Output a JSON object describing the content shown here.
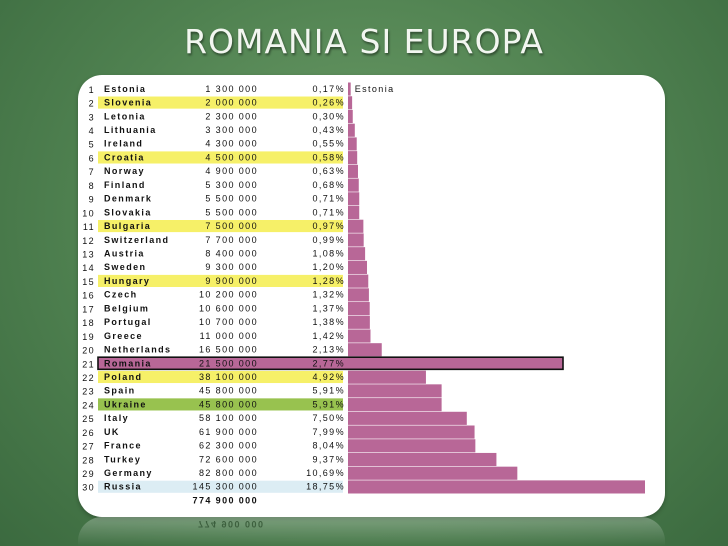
{
  "title": "ROMANIA SI EUROPA",
  "colors": {
    "bar": "#b86797",
    "highlight_yellow": "#f6f068",
    "highlight_green": "#98c24f",
    "highlight_blue": "#dcedf4",
    "highlight_romania": "#b86797"
  },
  "chart_data": {
    "type": "bar",
    "orientation": "horizontal",
    "bar_label": "Estonia",
    "total": "774 900 000",
    "rows": [
      {
        "rank": "1",
        "country": "Estonia",
        "population": "1 300 000",
        "percent": "0,17%",
        "value": 0.17,
        "highlight": ""
      },
      {
        "rank": "2",
        "country": "Slovenia",
        "population": "2 000 000",
        "percent": "0,26%",
        "value": 0.26,
        "highlight": "yellow"
      },
      {
        "rank": "3",
        "country": "Letonia",
        "population": "2 300 000",
        "percent": "0,30%",
        "value": 0.3,
        "highlight": ""
      },
      {
        "rank": "4",
        "country": "Lithuania",
        "population": "3 300 000",
        "percent": "0,43%",
        "value": 0.43,
        "highlight": ""
      },
      {
        "rank": "5",
        "country": "Ireland",
        "population": "4 300 000",
        "percent": "0,55%",
        "value": 0.55,
        "highlight": ""
      },
      {
        "rank": "6",
        "country": "Croatia",
        "population": "4 500 000",
        "percent": "0,58%",
        "value": 0.58,
        "highlight": "yellow"
      },
      {
        "rank": "7",
        "country": "Norway",
        "population": "4 900 000",
        "percent": "0,63%",
        "value": 0.63,
        "highlight": ""
      },
      {
        "rank": "8",
        "country": "Finland",
        "population": "5 300 000",
        "percent": "0,68%",
        "value": 0.68,
        "highlight": ""
      },
      {
        "rank": "9",
        "country": "Denmark",
        "population": "5 500 000",
        "percent": "0,71%",
        "value": 0.71,
        "highlight": ""
      },
      {
        "rank": "10",
        "country": "Slovakia",
        "population": "5 500 000",
        "percent": "0,71%",
        "value": 0.71,
        "highlight": ""
      },
      {
        "rank": "11",
        "country": "Bulgaria",
        "population": "7 500 000",
        "percent": "0,97%",
        "value": 0.97,
        "highlight": "yellow"
      },
      {
        "rank": "12",
        "country": "Switzerland",
        "population": "7 700 000",
        "percent": "0,99%",
        "value": 0.99,
        "highlight": ""
      },
      {
        "rank": "13",
        "country": "Austria",
        "population": "8 400 000",
        "percent": "1,08%",
        "value": 1.08,
        "highlight": ""
      },
      {
        "rank": "14",
        "country": "Sweden",
        "population": "9 300 000",
        "percent": "1,20%",
        "value": 1.2,
        "highlight": ""
      },
      {
        "rank": "15",
        "country": "Hungary",
        "population": "9 900 000",
        "percent": "1,28%",
        "value": 1.28,
        "highlight": "yellow"
      },
      {
        "rank": "16",
        "country": "Czech",
        "population": "10 200 000",
        "percent": "1,32%",
        "value": 1.32,
        "highlight": ""
      },
      {
        "rank": "17",
        "country": "Belgium",
        "population": "10 600 000",
        "percent": "1,37%",
        "value": 1.37,
        "highlight": ""
      },
      {
        "rank": "18",
        "country": "Portugal",
        "population": "10 700 000",
        "percent": "1,38%",
        "value": 1.38,
        "highlight": ""
      },
      {
        "rank": "19",
        "country": "Greece",
        "population": "11 000 000",
        "percent": "1,42%",
        "value": 1.42,
        "highlight": ""
      },
      {
        "rank": "20",
        "country": "Netherlands",
        "population": "16 500 000",
        "percent": "2,13%",
        "value": 2.13,
        "highlight": ""
      },
      {
        "rank": "21",
        "country": "Romania",
        "population": "21 500 000",
        "percent": "2,77%",
        "value": 2.77,
        "highlight": "romania"
      },
      {
        "rank": "22",
        "country": "Poland",
        "population": "38 100 000",
        "percent": "4,92%",
        "value": 4.92,
        "highlight": "yellow"
      },
      {
        "rank": "23",
        "country": "Spain",
        "population": "45 800 000",
        "percent": "5,91%",
        "value": 5.91,
        "highlight": ""
      },
      {
        "rank": "24",
        "country": "Ukraine",
        "population": "45 800 000",
        "percent": "5,91%",
        "value": 5.91,
        "highlight": "green"
      },
      {
        "rank": "25",
        "country": "Italy",
        "population": "58 100 000",
        "percent": "7,50%",
        "value": 7.5,
        "highlight": ""
      },
      {
        "rank": "26",
        "country": "UK",
        "population": "61 900 000",
        "percent": "7,99%",
        "value": 7.99,
        "highlight": ""
      },
      {
        "rank": "27",
        "country": "France",
        "population": "62 300 000",
        "percent": "8,04%",
        "value": 8.04,
        "highlight": ""
      },
      {
        "rank": "28",
        "country": "Turkey",
        "population": "72 600 000",
        "percent": "9,37%",
        "value": 9.37,
        "highlight": ""
      },
      {
        "rank": "29",
        "country": "Germany",
        "population": "82 800 000",
        "percent": "10,69%",
        "value": 10.69,
        "highlight": ""
      },
      {
        "rank": "30",
        "country": "Russia",
        "population": "145 300 000",
        "percent": "18,75%",
        "value": 18.75,
        "highlight": "blue"
      }
    ]
  }
}
